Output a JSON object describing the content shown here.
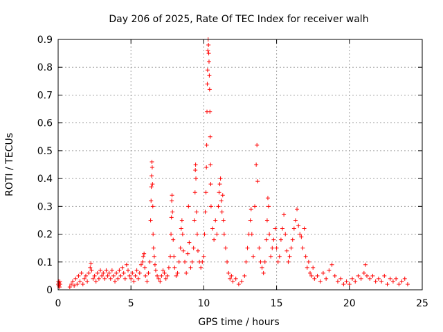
{
  "chart_data": {
    "type": "scatter",
    "title": "Day 206 of 2025, Rate Of TEC Index for receiver walh",
    "xlabel": "GPS time / hours",
    "ylabel": "ROTI / TECUs",
    "xlim": [
      0,
      25
    ],
    "ylim": [
      0,
      0.9
    ],
    "xticks": [
      "0",
      "5",
      "10",
      "15",
      "20",
      "25"
    ],
    "yticks": [
      "0",
      "0.1",
      "0.2",
      "0.3",
      "0.4",
      "0.5",
      "0.6",
      "0.7",
      "0.8",
      "0.9"
    ],
    "grid": true,
    "marker": "+",
    "color": "#ff0000",
    "series": [
      {
        "points": [
          [
            0.0,
            0.02
          ],
          [
            0.02,
            0.03
          ],
          [
            0.04,
            0.015
          ],
          [
            0.06,
            0.025
          ],
          [
            0.08,
            0.02
          ],
          [
            0.1,
            0.01
          ],
          [
            0.12,
            0.03
          ],
          [
            0.14,
            0.02
          ],
          [
            0.8,
            0.01
          ],
          [
            0.9,
            0.02
          ],
          [
            1.0,
            0.03
          ],
          [
            1.1,
            0.015
          ],
          [
            1.2,
            0.04
          ],
          [
            1.3,
            0.02
          ],
          [
            1.4,
            0.05
          ],
          [
            1.5,
            0.03
          ],
          [
            1.6,
            0.06
          ],
          [
            1.7,
            0.02
          ],
          [
            1.8,
            0.04
          ],
          [
            1.9,
            0.05
          ],
          [
            2.0,
            0.03
          ],
          [
            2.1,
            0.06
          ],
          [
            2.2,
            0.08
          ],
          [
            2.25,
            0.095
          ],
          [
            2.3,
            0.07
          ],
          [
            2.4,
            0.04
          ],
          [
            2.5,
            0.05
          ],
          [
            2.6,
            0.03
          ],
          [
            2.7,
            0.06
          ],
          [
            2.8,
            0.04
          ],
          [
            2.9,
            0.07
          ],
          [
            3.0,
            0.05
          ],
          [
            3.1,
            0.06
          ],
          [
            3.2,
            0.04
          ],
          [
            3.3,
            0.07
          ],
          [
            3.4,
            0.05
          ],
          [
            3.5,
            0.06
          ],
          [
            3.6,
            0.04
          ],
          [
            3.7,
            0.07
          ],
          [
            3.8,
            0.05
          ],
          [
            3.9,
            0.03
          ],
          [
            4.0,
            0.06
          ],
          [
            4.1,
            0.04
          ],
          [
            4.2,
            0.07
          ],
          [
            4.3,
            0.05
          ],
          [
            4.4,
            0.08
          ],
          [
            4.5,
            0.06
          ],
          [
            4.6,
            0.04
          ],
          [
            4.7,
            0.09
          ],
          [
            4.8,
            0.07
          ],
          [
            4.9,
            0.05
          ],
          [
            5.0,
            0.04
          ],
          [
            5.1,
            0.06
          ],
          [
            5.2,
            0.03
          ],
          [
            5.3,
            0.05
          ],
          [
            5.4,
            0.07
          ],
          [
            5.5,
            0.04
          ],
          [
            5.6,
            0.06
          ],
          [
            5.7,
            0.09
          ],
          [
            5.8,
            0.1
          ],
          [
            5.85,
            0.12
          ],
          [
            5.9,
            0.13
          ],
          [
            5.95,
            0.08
          ],
          [
            6.0,
            0.05
          ],
          [
            6.1,
            0.03
          ],
          [
            6.2,
            0.06
          ],
          [
            6.3,
            0.1
          ],
          [
            6.35,
            0.25
          ],
          [
            6.38,
            0.32
          ],
          [
            6.4,
            0.37
          ],
          [
            6.42,
            0.41
          ],
          [
            6.44,
            0.46
          ],
          [
            6.46,
            0.44
          ],
          [
            6.48,
            0.38
          ],
          [
            6.5,
            0.3
          ],
          [
            6.52,
            0.2
          ],
          [
            6.55,
            0.15
          ],
          [
            6.6,
            0.12
          ],
          [
            6.65,
            0.09
          ],
          [
            6.7,
            0.07
          ],
          [
            6.8,
            0.05
          ],
          [
            6.9,
            0.04
          ],
          [
            7.0,
            0.03
          ],
          [
            7.1,
            0.05
          ],
          [
            7.2,
            0.07
          ],
          [
            7.3,
            0.06
          ],
          [
            7.4,
            0.04
          ],
          [
            7.5,
            0.05
          ],
          [
            7.6,
            0.08
          ],
          [
            7.7,
            0.12
          ],
          [
            7.75,
            0.2
          ],
          [
            7.78,
            0.26
          ],
          [
            7.8,
            0.32
          ],
          [
            7.82,
            0.34
          ],
          [
            7.85,
            0.28
          ],
          [
            7.9,
            0.18
          ],
          [
            7.95,
            0.12
          ],
          [
            8.0,
            0.08
          ],
          [
            8.1,
            0.05
          ],
          [
            8.2,
            0.06
          ],
          [
            8.3,
            0.1
          ],
          [
            8.4,
            0.15
          ],
          [
            8.45,
            0.22
          ],
          [
            8.5,
            0.25
          ],
          [
            8.55,
            0.2
          ],
          [
            8.6,
            0.14
          ],
          [
            8.7,
            0.1
          ],
          [
            8.8,
            0.06
          ],
          [
            8.9,
            0.13
          ],
          [
            8.95,
            0.3
          ],
          [
            9.0,
            0.17
          ],
          [
            9.1,
            0.08
          ],
          [
            9.2,
            0.1
          ],
          [
            9.3,
            0.15
          ],
          [
            9.35,
            0.25
          ],
          [
            9.4,
            0.35
          ],
          [
            9.42,
            0.43
          ],
          [
            9.44,
            0.45
          ],
          [
            9.46,
            0.4
          ],
          [
            9.5,
            0.28
          ],
          [
            9.55,
            0.2
          ],
          [
            9.6,
            0.14
          ],
          [
            9.7,
            0.1
          ],
          [
            9.8,
            0.08
          ],
          [
            9.9,
            0.1
          ],
          [
            10.0,
            0.12
          ],
          [
            10.05,
            0.2
          ],
          [
            10.1,
            0.28
          ],
          [
            10.15,
            0.35
          ],
          [
            10.18,
            0.44
          ],
          [
            10.2,
            0.52
          ],
          [
            10.22,
            0.64
          ],
          [
            10.24,
            0.74
          ],
          [
            10.26,
            0.79
          ],
          [
            10.28,
            0.86
          ],
          [
            10.3,
            0.9
          ],
          [
            10.32,
            0.88
          ],
          [
            10.34,
            0.85
          ],
          [
            10.36,
            0.82
          ],
          [
            10.38,
            0.77
          ],
          [
            10.4,
            0.72
          ],
          [
            10.42,
            0.64
          ],
          [
            10.44,
            0.55
          ],
          [
            10.46,
            0.45
          ],
          [
            10.48,
            0.38
          ],
          [
            10.5,
            0.3
          ],
          [
            10.6,
            0.22
          ],
          [
            10.7,
            0.18
          ],
          [
            10.8,
            0.25
          ],
          [
            10.9,
            0.2
          ],
          [
            11.0,
            0.3
          ],
          [
            11.05,
            0.35
          ],
          [
            11.1,
            0.38
          ],
          [
            11.15,
            0.4
          ],
          [
            11.2,
            0.32
          ],
          [
            11.25,
            0.28
          ],
          [
            11.3,
            0.34
          ],
          [
            11.35,
            0.25
          ],
          [
            11.4,
            0.2
          ],
          [
            11.5,
            0.15
          ],
          [
            11.6,
            0.1
          ],
          [
            11.7,
            0.06
          ],
          [
            11.8,
            0.04
          ],
          [
            11.9,
            0.05
          ],
          [
            12.0,
            0.03
          ],
          [
            12.2,
            0.04
          ],
          [
            12.4,
            0.02
          ],
          [
            12.6,
            0.03
          ],
          [
            12.8,
            0.05
          ],
          [
            12.9,
            0.1
          ],
          [
            13.0,
            0.15
          ],
          [
            13.1,
            0.2
          ],
          [
            13.2,
            0.25
          ],
          [
            13.25,
            0.29
          ],
          [
            13.3,
            0.2
          ],
          [
            13.4,
            0.12
          ],
          [
            13.5,
            0.3
          ],
          [
            13.6,
            0.45
          ],
          [
            13.65,
            0.52
          ],
          [
            13.7,
            0.39
          ],
          [
            13.8,
            0.15
          ],
          [
            13.9,
            0.1
          ],
          [
            14.0,
            0.08
          ],
          [
            14.1,
            0.06
          ],
          [
            14.2,
            0.1
          ],
          [
            14.3,
            0.18
          ],
          [
            14.35,
            0.25
          ],
          [
            14.4,
            0.33
          ],
          [
            14.45,
            0.3
          ],
          [
            14.5,
            0.2
          ],
          [
            14.6,
            0.12
          ],
          [
            14.7,
            0.15
          ],
          [
            14.8,
            0.18
          ],
          [
            14.9,
            0.22
          ],
          [
            15.0,
            0.15
          ],
          [
            15.1,
            0.1
          ],
          [
            15.2,
            0.12
          ],
          [
            15.3,
            0.18
          ],
          [
            15.4,
            0.22
          ],
          [
            15.5,
            0.27
          ],
          [
            15.6,
            0.2
          ],
          [
            15.7,
            0.14
          ],
          [
            15.8,
            0.1
          ],
          [
            15.9,
            0.12
          ],
          [
            16.0,
            0.15
          ],
          [
            16.1,
            0.18
          ],
          [
            16.2,
            0.22
          ],
          [
            16.3,
            0.25
          ],
          [
            16.4,
            0.29
          ],
          [
            16.5,
            0.23
          ],
          [
            16.6,
            0.2
          ],
          [
            16.7,
            0.19
          ],
          [
            16.8,
            0.15
          ],
          [
            16.9,
            0.22
          ],
          [
            17.0,
            0.12
          ],
          [
            17.1,
            0.08
          ],
          [
            17.2,
            0.1
          ],
          [
            17.3,
            0.06
          ],
          [
            17.4,
            0.05
          ],
          [
            17.5,
            0.08
          ],
          [
            17.6,
            0.04
          ],
          [
            17.8,
            0.05
          ],
          [
            18.0,
            0.03
          ],
          [
            18.2,
            0.06
          ],
          [
            18.4,
            0.04
          ],
          [
            18.6,
            0.07
          ],
          [
            18.8,
            0.09
          ],
          [
            19.0,
            0.05
          ],
          [
            19.2,
            0.03
          ],
          [
            19.4,
            0.04
          ],
          [
            19.6,
            0.02
          ],
          [
            19.8,
            0.03
          ],
          [
            20.0,
            0.02
          ],
          [
            20.2,
            0.04
          ],
          [
            20.4,
            0.03
          ],
          [
            20.6,
            0.05
          ],
          [
            20.8,
            0.04
          ],
          [
            21.0,
            0.06
          ],
          [
            21.1,
            0.09
          ],
          [
            21.2,
            0.05
          ],
          [
            21.4,
            0.04
          ],
          [
            21.6,
            0.05
          ],
          [
            21.8,
            0.03
          ],
          [
            22.0,
            0.04
          ],
          [
            22.2,
            0.03
          ],
          [
            22.4,
            0.05
          ],
          [
            22.6,
            0.02
          ],
          [
            22.8,
            0.04
          ],
          [
            23.0,
            0.03
          ],
          [
            23.2,
            0.04
          ],
          [
            23.4,
            0.02
          ],
          [
            23.6,
            0.03
          ],
          [
            23.8,
            0.04
          ],
          [
            24.0,
            0.02
          ]
        ]
      }
    ]
  }
}
